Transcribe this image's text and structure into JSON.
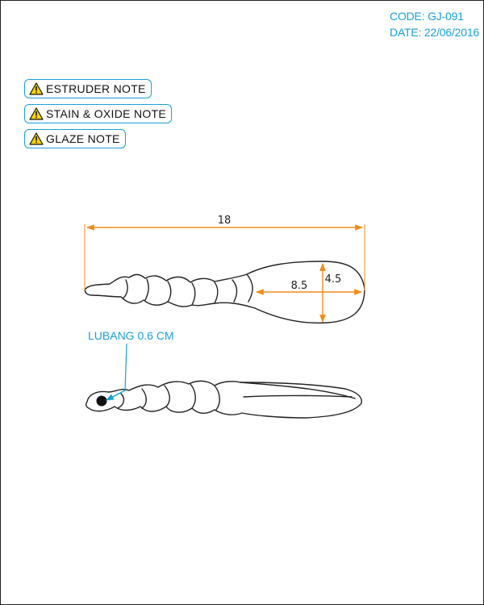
{
  "header": {
    "code": "CODE: GJ-091",
    "date": "DATE: 22/06/2016"
  },
  "notes": [
    {
      "label": "ESTRUDER NOTE",
      "icon": "warning-icon"
    },
    {
      "label": "STAIN & OXIDE NOTE",
      "icon": "warning-icon"
    },
    {
      "label": "GLAZE NOTE",
      "icon": "warning-icon"
    }
  ],
  "dimensions": {
    "length": "18",
    "bowl_length": "8.5",
    "bowl_width": "4.5"
  },
  "hole_label": "LUBANG 0.6 CM",
  "colors": {
    "accent": "#1aa0d8",
    "dimension": "#f08c1e",
    "outline": "#222222"
  }
}
